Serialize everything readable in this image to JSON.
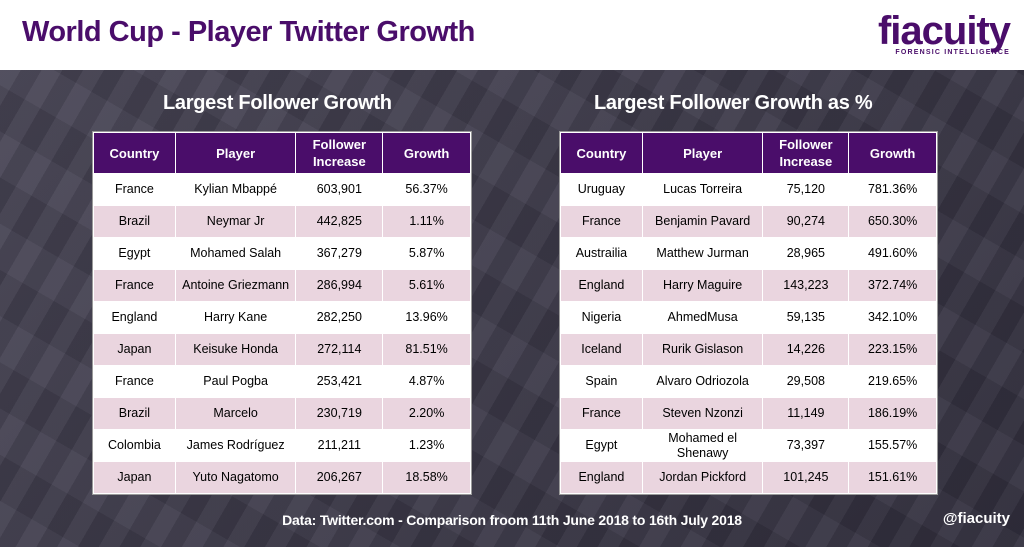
{
  "header": {
    "title": "World Cup - Player Twitter Growth",
    "logo_word": "fiacuity",
    "logo_sub": "FORENSIC INTELLIGENCE"
  },
  "left": {
    "title": "Largest Follower Growth",
    "columns": [
      "Country",
      "Player",
      "Follower Increase",
      "Growth"
    ],
    "rows": [
      [
        "France",
        "Kylian Mbappé",
        "603,901",
        "56.37%"
      ],
      [
        "Brazil",
        "Neymar Jr",
        "442,825",
        "1.11%"
      ],
      [
        "Egypt",
        "Mohamed Salah",
        "367,279",
        "5.87%"
      ],
      [
        "France",
        "Antoine Griezmann",
        "286,994",
        "5.61%"
      ],
      [
        "England",
        "Harry Kane",
        "282,250",
        "13.96%"
      ],
      [
        "Japan",
        "Keisuke Honda",
        "272,114",
        "81.51%"
      ],
      [
        "France",
        "Paul Pogba",
        "253,421",
        "4.87%"
      ],
      [
        "Brazil",
        "Marcelo",
        "230,719",
        "2.20%"
      ],
      [
        "Colombia",
        "James Rodríguez",
        "211,211",
        "1.23%"
      ],
      [
        "Japan",
        "Yuto Nagatomo",
        "206,267",
        "18.58%"
      ]
    ]
  },
  "right": {
    "title": "Largest Follower Growth as %",
    "columns": [
      "Country",
      "Player",
      "Follower Increase",
      "Growth"
    ],
    "rows": [
      [
        "Uruguay",
        "Lucas Torreira",
        "75,120",
        "781.36%"
      ],
      [
        "France",
        "Benjamin Pavard",
        "90,274",
        "650.30%"
      ],
      [
        "Austrailia",
        "Matthew Jurman",
        "28,965",
        "491.60%"
      ],
      [
        "England",
        "Harry Maguire",
        "143,223",
        "372.74%"
      ],
      [
        "Nigeria",
        "AhmedMusa",
        "59,135",
        "342.10%"
      ],
      [
        "Iceland",
        "Rurik Gislason",
        "14,226",
        "223.15%"
      ],
      [
        "Spain",
        "Alvaro Odriozola",
        "29,508",
        "219.65%"
      ],
      [
        "France",
        "Steven Nzonzi",
        "11,149",
        "186.19%"
      ],
      [
        "Egypt",
        "Mohamed el Shenawy",
        "73,397",
        "155.57%"
      ],
      [
        "England",
        "Jordan Pickford",
        "101,245",
        "151.61%"
      ]
    ]
  },
  "footer": {
    "source": "Data: Twitter.com - Comparison froom 11th June 2018 to 16th July 2018",
    "handle": "@fiacuity"
  },
  "colors": {
    "accent": "#4a0d6a",
    "row_alt": "#ead5df",
    "background": "#3a3748"
  }
}
